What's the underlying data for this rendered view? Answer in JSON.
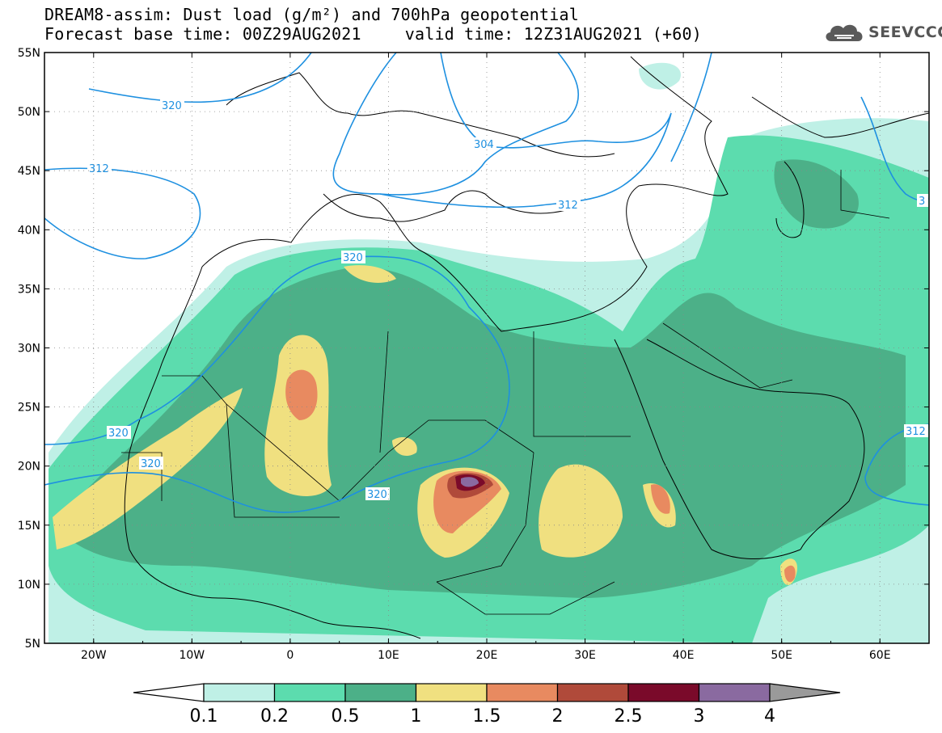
{
  "header": {
    "title_line1": "DREAM8-assim: Dust load (g/m²) and 700hPa geopotential",
    "base_time": "Forecast base time: 00Z29AUG2021",
    "valid_time": "valid time: 12Z31AUG2021 (+60)"
  },
  "logo": {
    "text": "SEEVCCC",
    "icon": "cloud-logo-icon",
    "color": "#555555"
  },
  "map": {
    "lon_range": [
      -25,
      65
    ],
    "lat_range": [
      5,
      55
    ],
    "lat_labels": [
      "55N",
      "50N",
      "45N",
      "40N",
      "35N",
      "30N",
      "25N",
      "20N",
      "15N",
      "10N",
      "5N"
    ],
    "lon_labels": [
      "20W",
      "10W",
      "0",
      "10E",
      "20E",
      "30E",
      "40E",
      "50E",
      "60E"
    ],
    "contour_labels": [
      "320",
      "312",
      "304",
      "312",
      "3",
      "320",
      "320",
      "320",
      "320",
      "312"
    ],
    "contour_color": "#1e90e0"
  },
  "colorbar": {
    "levels": [
      "0.1",
      "0.2",
      "0.5",
      "1",
      "1.5",
      "2",
      "2.5",
      "3",
      "4"
    ],
    "colors": [
      "#bff0e6",
      "#5cdcae",
      "#4cb088",
      "#f0e080",
      "#e88a60",
      "#b04a3a",
      "#7a0a2a",
      "#8a6aa0"
    ],
    "under_color": "#ffffff",
    "over_color": "#9a9a9a"
  }
}
